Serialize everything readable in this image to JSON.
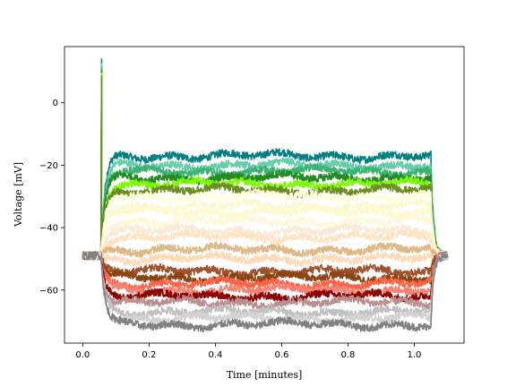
{
  "chart_data": {
    "type": "line",
    "title": "",
    "xlabel": "Time [minutes]",
    "ylabel": "Voltage [mV]",
    "xlim": [
      -0.055,
      1.15
    ],
    "ylim": [
      -77,
      18
    ],
    "x_ticks": [
      0.0,
      0.2,
      0.4,
      0.6,
      0.8,
      1.0
    ],
    "x_tick_labels": [
      "0.0",
      "0.2",
      "0.4",
      "0.6",
      "0.8",
      "1.0"
    ],
    "y_ticks": [
      0,
      -20,
      -40,
      -60
    ],
    "y_tick_labels": [
      "0",
      "−20",
      "−40",
      "−60"
    ],
    "grid": false,
    "legend": "none",
    "protocol": {
      "baseline_start": 0.0,
      "step_on": 0.055,
      "step_off": 1.05,
      "end": 1.1,
      "resting_mV": -49,
      "spike_peak_mV": 14
    },
    "series": [
      {
        "color": "#008080",
        "plateau": -17
      },
      {
        "color": "#66cdaa",
        "plateau": -20
      },
      {
        "color": "#3cb371",
        "plateau": -22
      },
      {
        "color": "#228b22",
        "plateau": -24
      },
      {
        "color": "#7cfc00",
        "plateau": -26
      },
      {
        "color": "#6b8e23",
        "plateau": -28
      },
      {
        "color": "#ffffe0",
        "plateau": -30
      },
      {
        "color": "#fafad2",
        "plateau": -33
      },
      {
        "color": "#fffacd",
        "plateau": -35
      },
      {
        "color": "#fff8dc",
        "plateau": -38
      },
      {
        "color": "#faebd7",
        "plateau": -41
      },
      {
        "color": "#ffe4c4",
        "plateau": -43
      },
      {
        "color": "#deb887",
        "plateau": -47
      },
      {
        "color": "#ffdab9",
        "plateau": -50
      },
      {
        "color": "#a0522d",
        "plateau": -54
      },
      {
        "color": "#8b4513",
        "plateau": -56
      },
      {
        "color": "#ff6347",
        "plateau": -58
      },
      {
        "color": "#fa8072",
        "plateau": -60
      },
      {
        "color": "#8b0000",
        "plateau": -62
      },
      {
        "color": "#bc8f8f",
        "plateau": -64
      },
      {
        "color": "#c0c0c0",
        "plateau": -67
      },
      {
        "color": "#d3d3d3",
        "plateau": -69
      },
      {
        "color": "#808080",
        "plateau": -71
      }
    ]
  }
}
